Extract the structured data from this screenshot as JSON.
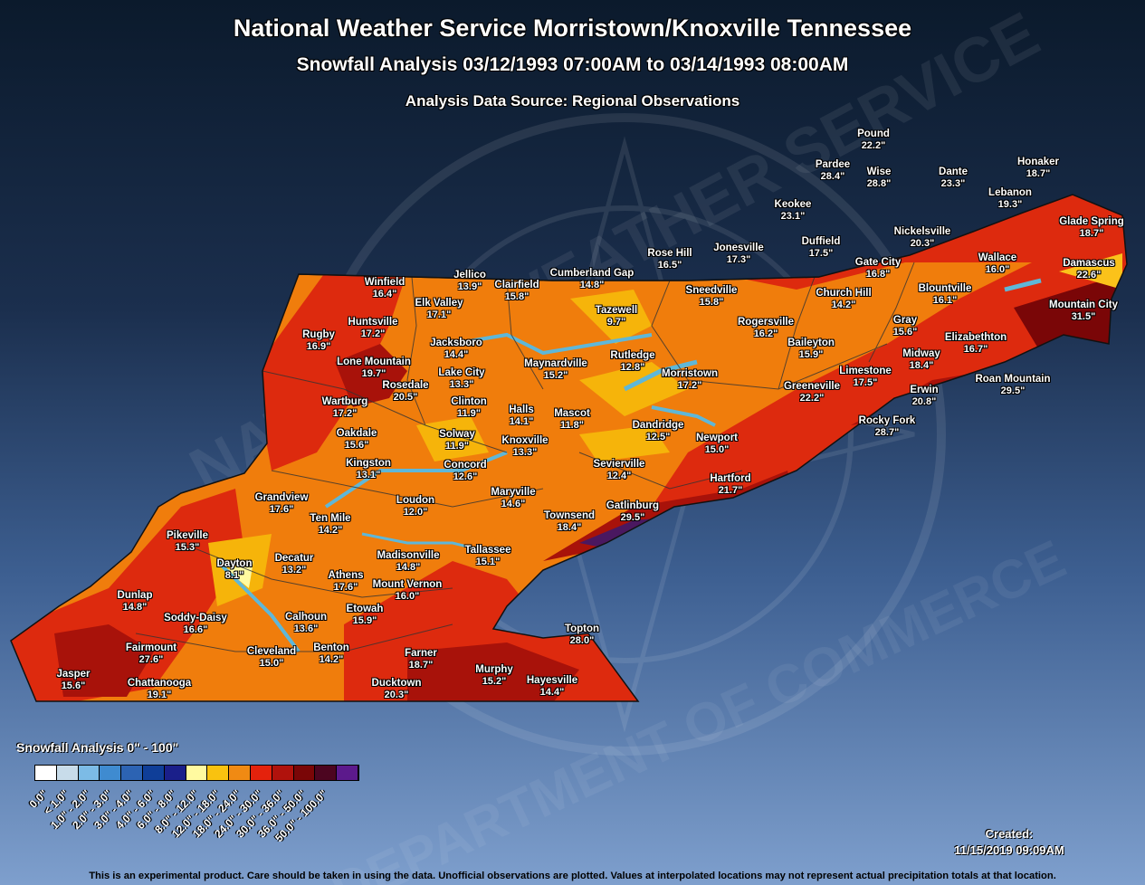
{
  "header": {
    "title": "National Weather Service Morristown/Knoxville Tennessee",
    "subtitle": "Snowfall Analysis 03/12/1993 07:00AM to 03/14/1993 08:00AM",
    "source": "Analysis Data Source: Regional Observations"
  },
  "watermark": {
    "top_text": "NATIONAL WEATHER SERVICE",
    "bottom_text": "DEPARTMENT OF COMMERCE"
  },
  "colors": {
    "map_base": "#f07d0c",
    "high": "#dd2a0e",
    "very_high": "#a8120a",
    "extreme": "#6e0708",
    "peak": "#4a1860",
    "low": "#f6b40a",
    "lake": "#5fb7d8"
  },
  "stations": [
    {
      "name": "Pound",
      "value": "22.2\""
    },
    {
      "name": "Pardee",
      "value": "28.4\""
    },
    {
      "name": "Wise",
      "value": "28.8\""
    },
    {
      "name": "Dante",
      "value": "23.3\""
    },
    {
      "name": "Honaker",
      "value": "18.7\""
    },
    {
      "name": "Lebanon",
      "value": "19.3\""
    },
    {
      "name": "Keokee",
      "value": "23.1\""
    },
    {
      "name": "Glade Spring",
      "value": "18.7\""
    },
    {
      "name": "Nickelsville",
      "value": "20.3\""
    },
    {
      "name": "Rose Hill",
      "value": "16.5\""
    },
    {
      "name": "Jonesville",
      "value": "17.3\""
    },
    {
      "name": "Duffield",
      "value": "17.5\""
    },
    {
      "name": "Gate City",
      "value": "16.8\""
    },
    {
      "name": "Wallace",
      "value": "16.0\""
    },
    {
      "name": "Damascus",
      "value": "22.6\""
    },
    {
      "name": "Cumberland Gap",
      "value": "14.8\""
    },
    {
      "name": "Jellico",
      "value": "13.9\""
    },
    {
      "name": "Winfield",
      "value": "16.4\""
    },
    {
      "name": "Clairfield",
      "value": "15.8\""
    },
    {
      "name": "Sneedville",
      "value": "15.8\""
    },
    {
      "name": "Blountville",
      "value": "16.1\""
    },
    {
      "name": "Church Hill",
      "value": "14.2\""
    },
    {
      "name": "Mountain City",
      "value": "31.5\""
    },
    {
      "name": "Elk Valley",
      "value": "17.1\""
    },
    {
      "name": "Tazewell",
      "value": "9.7\""
    },
    {
      "name": "Huntsville",
      "value": "17.2\""
    },
    {
      "name": "Rogersville",
      "value": "16.2\""
    },
    {
      "name": "Gray",
      "value": "15.6\""
    },
    {
      "name": "Rugby",
      "value": "16.9\""
    },
    {
      "name": "Jacksboro",
      "value": "14.4\""
    },
    {
      "name": "Baileyton",
      "value": "15.9\""
    },
    {
      "name": "Elizabethton",
      "value": "16.7\""
    },
    {
      "name": "Rutledge",
      "value": "12.8\""
    },
    {
      "name": "Lone Mountain",
      "value": "19.7\""
    },
    {
      "name": "Maynardville",
      "value": "15.2\""
    },
    {
      "name": "Midway",
      "value": "18.4\""
    },
    {
      "name": "Lake City",
      "value": "13.3\""
    },
    {
      "name": "Limestone",
      "value": "17.5\""
    },
    {
      "name": "Morristown",
      "value": "17.2\""
    },
    {
      "name": "Roan Mountain",
      "value": "29.5\""
    },
    {
      "name": "Rosedale",
      "value": "20.5\""
    },
    {
      "name": "Greeneville",
      "value": "22.2\""
    },
    {
      "name": "Erwin",
      "value": "20.8\""
    },
    {
      "name": "Wartburg",
      "value": "17.2\""
    },
    {
      "name": "Clinton",
      "value": "11.9\""
    },
    {
      "name": "Halls",
      "value": "14.1\""
    },
    {
      "name": "Mascot",
      "value": "11.8\""
    },
    {
      "name": "Rocky Fork",
      "value": "28.7\""
    },
    {
      "name": "Dandridge",
      "value": "12.5\""
    },
    {
      "name": "Oakdale",
      "value": "15.6\""
    },
    {
      "name": "Solway",
      "value": "11.9\""
    },
    {
      "name": "Knoxville",
      "value": "13.3\""
    },
    {
      "name": "Newport",
      "value": "15.0\""
    },
    {
      "name": "Kingston",
      "value": "13.1\""
    },
    {
      "name": "Concord",
      "value": "12.6\""
    },
    {
      "name": "Sevierville",
      "value": "12.4\""
    },
    {
      "name": "Hartford",
      "value": "21.7\""
    },
    {
      "name": "Grandview",
      "value": "17.6\""
    },
    {
      "name": "Loudon",
      "value": "12.0\""
    },
    {
      "name": "Maryville",
      "value": "14.6\""
    },
    {
      "name": "Gatlinburg",
      "value": "29.5\""
    },
    {
      "name": "Ten Mile",
      "value": "14.2\""
    },
    {
      "name": "Townsend",
      "value": "18.4\""
    },
    {
      "name": "Pikeville",
      "value": "15.3\""
    },
    {
      "name": "Decatur",
      "value": "13.2\""
    },
    {
      "name": "Dayton",
      "value": "8.1\""
    },
    {
      "name": "Madisonville",
      "value": "14.8\""
    },
    {
      "name": "Tallassee",
      "value": "15.1\""
    },
    {
      "name": "Athens",
      "value": "17.6\""
    },
    {
      "name": "Mount Vernon",
      "value": "16.0\""
    },
    {
      "name": "Dunlap",
      "value": "14.8\""
    },
    {
      "name": "Etowah",
      "value": "15.9\""
    },
    {
      "name": "Soddy-Daisy",
      "value": "16.6\""
    },
    {
      "name": "Calhoun",
      "value": "13.6\""
    },
    {
      "name": "Topton",
      "value": "28.0\""
    },
    {
      "name": "Fairmount",
      "value": "27.6\""
    },
    {
      "name": "Cleveland",
      "value": "15.0\""
    },
    {
      "name": "Benton",
      "value": "14.2\""
    },
    {
      "name": "Farner",
      "value": "18.7\""
    },
    {
      "name": "Jasper",
      "value": "15.6\""
    },
    {
      "name": "Murphy",
      "value": "15.2\""
    },
    {
      "name": "Chattanooga",
      "value": "19.1\""
    },
    {
      "name": "Hayesville",
      "value": "14.4\""
    },
    {
      "name": "Ducktown",
      "value": "20.3\""
    }
  ],
  "legend": {
    "title": "Snowfall Analysis 0\" - 100\"",
    "items": [
      {
        "label": "0.0\"",
        "color": "#ffffff"
      },
      {
        "label": "< 1.0\"",
        "color": "#c8dcea"
      },
      {
        "label": "1.0\" - 2.0\"",
        "color": "#7cbbe6"
      },
      {
        "label": "2.0\" - 3.0\"",
        "color": "#3f8bd0"
      },
      {
        "label": "3.0\" - 4.0\"",
        "color": "#2c63b3"
      },
      {
        "label": "4.0\" - 6.0\"",
        "color": "#0f3e98"
      },
      {
        "label": "6.0\" - 8.0\"",
        "color": "#1a1f8a"
      },
      {
        "label": "8.0\" - 12.0\"",
        "color": "#fffaa0"
      },
      {
        "label": "12.0\" - 18.0\"",
        "color": "#f9c20f"
      },
      {
        "label": "18.0\" - 24.0\"",
        "color": "#f08a13"
      },
      {
        "label": "24.0\" - 30.0\"",
        "color": "#e4220c"
      },
      {
        "label": "30.0\" - 36.0\"",
        "color": "#b0120c"
      },
      {
        "label": "36.0\" - 50.0\"",
        "color": "#7a0607"
      },
      {
        "label": "50.0\" - 100.0\"",
        "color": "#4c0520"
      },
      {
        "label": "",
        "color": "#5c1a8c"
      }
    ]
  },
  "created": {
    "label": "Created:",
    "date": "11/15/2019 09:09AM"
  },
  "disclaimer": "This is an experimental product. Care should be taken in using the data. Unofficial observations are plotted. Values at interpolated locations may not represent actual precipitation totals at that location."
}
